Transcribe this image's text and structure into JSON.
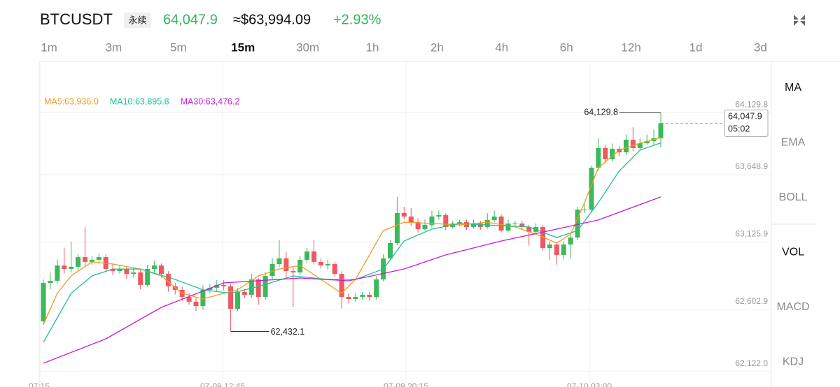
{
  "header": {
    "symbol": "BTCUSDT",
    "badge": "永续",
    "price": "64,047.9",
    "usd_price": "≈$63,994.09",
    "change": "+2.93%"
  },
  "timeframes": [
    "1m",
    "3m",
    "5m",
    "15m",
    "30m",
    "1h",
    "2h",
    "4h",
    "6h",
    "12h",
    "1d",
    "3d"
  ],
  "active_timeframe": "15m",
  "indicators": [
    "MA",
    "EMA",
    "BOLL",
    "VOL",
    "MACD",
    "KDJ"
  ],
  "active_indicators": [
    "MA",
    "VOL"
  ],
  "chart_data": {
    "type": "candlestick",
    "up_color": "#3cb95a",
    "down_color": "#f0575f",
    "ylim": [
      62001.3,
      64516.2
    ],
    "yticks": [
      {
        "value": 64129.8,
        "label": "64,129.8"
      },
      {
        "value": 63648.9,
        "label": "63,648.9"
      },
      {
        "value": 63125.9,
        "label": "63,125.9"
      },
      {
        "value": 62602.9,
        "label": "62,602.9"
      },
      {
        "value": 62122.0,
        "label": "62,122.0"
      }
    ],
    "grid": true,
    "time_labels": [
      "07:15",
      "07-09 12:45",
      "07-09 20:15",
      "07-10 03:00"
    ],
    "ohlc": [
      [
        62511,
        62836,
        62490,
        62809
      ],
      [
        62809,
        62890,
        62760,
        62825
      ],
      [
        62825,
        62990,
        62800,
        62944
      ],
      [
        62944,
        63080,
        62880,
        62917
      ],
      [
        62917,
        63130,
        62890,
        62934
      ],
      [
        62934,
        63030,
        62900,
        63009
      ],
      [
        63009,
        63243,
        62940,
        62972
      ],
      [
        62972,
        63020,
        62950,
        62988
      ],
      [
        62988,
        63040,
        62960,
        63009
      ],
      [
        63009,
        63030,
        62890,
        62917
      ],
      [
        62917,
        62960,
        62870,
        62901
      ],
      [
        62901,
        62950,
        62880,
        62917
      ],
      [
        62917,
        62940,
        62840,
        62879
      ],
      [
        62879,
        62930,
        62850,
        62890
      ],
      [
        62890,
        62910,
        62760,
        62793
      ],
      [
        62793,
        62950,
        62780,
        62917
      ],
      [
        62917,
        62980,
        62890,
        62944
      ],
      [
        62944,
        62960,
        62850,
        62879
      ],
      [
        62879,
        62900,
        62740,
        62782
      ],
      [
        62782,
        62810,
        62720,
        62755
      ],
      [
        62755,
        62780,
        62670,
        62700
      ],
      [
        62700,
        62730,
        62640,
        62663
      ],
      [
        62663,
        62690,
        62590,
        62630
      ],
      [
        62630,
        62790,
        62600,
        62755
      ],
      [
        62755,
        62800,
        62730,
        62771
      ],
      [
        62771,
        62830,
        62740,
        62793
      ],
      [
        62793,
        62830,
        62750,
        62782
      ],
      [
        62782,
        62800,
        62432.1,
        62608
      ],
      [
        62608,
        62770,
        62590,
        62738
      ],
      [
        62738,
        62760,
        62690,
        62717
      ],
      [
        62717,
        62880,
        62690,
        62836
      ],
      [
        62836,
        62850,
        62640,
        62700
      ],
      [
        62700,
        62890,
        62680,
        62863
      ],
      [
        62863,
        63000,
        62840,
        62955
      ],
      [
        62955,
        63140,
        62930,
        62999
      ],
      [
        62999,
        63050,
        62850,
        62901
      ],
      [
        62901,
        62930,
        62620,
        62890
      ],
      [
        62890,
        63020,
        62870,
        62988
      ],
      [
        62988,
        63080,
        62960,
        63053
      ],
      [
        63053,
        63140,
        62950,
        62972
      ],
      [
        62972,
        63000,
        62920,
        62944
      ],
      [
        62944,
        62990,
        62910,
        62955
      ],
      [
        62955,
        62970,
        62860,
        62879
      ],
      [
        62879,
        62900,
        62610,
        62700
      ],
      [
        62700,
        62730,
        62650,
        62684
      ],
      [
        62684,
        62730,
        62660,
        62700
      ],
      [
        62700,
        62740,
        62680,
        62717
      ],
      [
        62717,
        62740,
        62670,
        62700
      ],
      [
        62700,
        62860,
        62680,
        62836
      ],
      [
        62836,
        63030,
        62820,
        62999
      ],
      [
        62999,
        63140,
        62980,
        63118
      ],
      [
        63118,
        63476,
        63100,
        63351
      ],
      [
        63351,
        63400,
        63300,
        63324
      ],
      [
        63324,
        63390,
        63250,
        63280
      ],
      [
        63280,
        63310,
        63200,
        63226
      ],
      [
        63226,
        63300,
        63210,
        63259
      ],
      [
        63259,
        63370,
        63240,
        63324
      ],
      [
        63324,
        63370,
        63300,
        63335
      ],
      [
        63335,
        63350,
        63220,
        63243
      ],
      [
        63243,
        63290,
        63230,
        63270
      ],
      [
        63270,
        63300,
        63250,
        63280
      ],
      [
        63280,
        63300,
        63220,
        63243
      ],
      [
        63243,
        63300,
        63230,
        63270
      ],
      [
        63270,
        63290,
        63220,
        63243
      ],
      [
        63243,
        63350,
        63230,
        63297
      ],
      [
        63297,
        63370,
        63280,
        63324
      ],
      [
        63324,
        63340,
        63200,
        63215
      ],
      [
        63215,
        63300,
        63200,
        63270
      ],
      [
        63270,
        63290,
        63250,
        63270
      ],
      [
        63270,
        63290,
        63220,
        63243
      ],
      [
        63243,
        63260,
        63100,
        63205
      ],
      [
        63205,
        63270,
        63190,
        63243
      ],
      [
        63243,
        63260,
        63060,
        63080
      ],
      [
        63080,
        63130,
        62990,
        63107
      ],
      [
        63107,
        63120,
        62950,
        63026
      ],
      [
        63026,
        63130,
        62990,
        63107
      ],
      [
        63107,
        63180,
        63000,
        63161
      ],
      [
        63161,
        63400,
        63140,
        63378
      ],
      [
        63378,
        63420,
        63350,
        63378
      ],
      [
        63378,
        63720,
        63360,
        63703
      ],
      [
        63703,
        63931,
        63680,
        63855
      ],
      [
        63855,
        63880,
        63740,
        63768
      ],
      [
        63768,
        63890,
        63750,
        63850
      ],
      [
        63850,
        63870,
        63790,
        63822
      ],
      [
        63822,
        63960,
        63800,
        63920
      ],
      [
        63920,
        64018,
        63830,
        63855
      ],
      [
        63855,
        63930,
        63840,
        63893
      ],
      [
        63893,
        63960,
        63880,
        63909
      ],
      [
        63909,
        64000,
        63880,
        63931
      ],
      [
        63931,
        64129.8,
        63860,
        64047.9
      ]
    ],
    "series": [
      {
        "name": "MA5",
        "label": "MA5:63,936.0",
        "color": "#f29b1d",
        "x": [
          0,
          2,
          4,
          7,
          10,
          14,
          17,
          20,
          23,
          26,
          28,
          31,
          34,
          37,
          40,
          43,
          45,
          47,
          49,
          52,
          56,
          60,
          64,
          68,
          71,
          74,
          76,
          78,
          80,
          83,
          86,
          89
        ],
        "values": [
          62484,
          62728,
          62863,
          62972,
          62955,
          62917,
          62863,
          62728,
          62684,
          62728,
          62755,
          62863,
          62917,
          62944,
          62836,
          62728,
          62836,
          63026,
          63215,
          63280,
          63270,
          63259,
          63280,
          63243,
          63188,
          63118,
          63188,
          63432,
          63703,
          63839,
          63893,
          63936.0
        ]
      },
      {
        "name": "MA10",
        "label": "MA10:63,895.8",
        "color": "#1fbf9a",
        "x": [
          0,
          2,
          4,
          7,
          10,
          14,
          19,
          23,
          27,
          31,
          36,
          41,
          45,
          49,
          52,
          56,
          60,
          66,
          70,
          74,
          77,
          80,
          83,
          86,
          89
        ],
        "values": [
          62348,
          62538,
          62728,
          62863,
          62917,
          62917,
          62836,
          62755,
          62728,
          62782,
          62863,
          62836,
          62836,
          62917,
          63134,
          63226,
          63270,
          63253,
          63243,
          63161,
          63215,
          63432,
          63676,
          63839,
          63895.8
        ]
      },
      {
        "name": "MA30",
        "label": "MA30:63,476.2",
        "color": "#c21fd6",
        "x": [
          0,
          9,
          17,
          26,
          37,
          44,
          52,
          58,
          66,
          74,
          80,
          89
        ],
        "values": [
          62185.6,
          62375,
          62619,
          62809,
          62847,
          62825,
          62917,
          63026,
          63134.1,
          63226,
          63297,
          63476.2
        ]
      }
    ],
    "current_price": {
      "value": 64047.9,
      "label": "64,047.9",
      "countdown": "05:02"
    },
    "high_marker": {
      "value": 64129.8,
      "label": "64,129.8",
      "index": 89
    },
    "low_marker": {
      "value": 62432.1,
      "label": "62,432.1",
      "index": 27
    }
  }
}
